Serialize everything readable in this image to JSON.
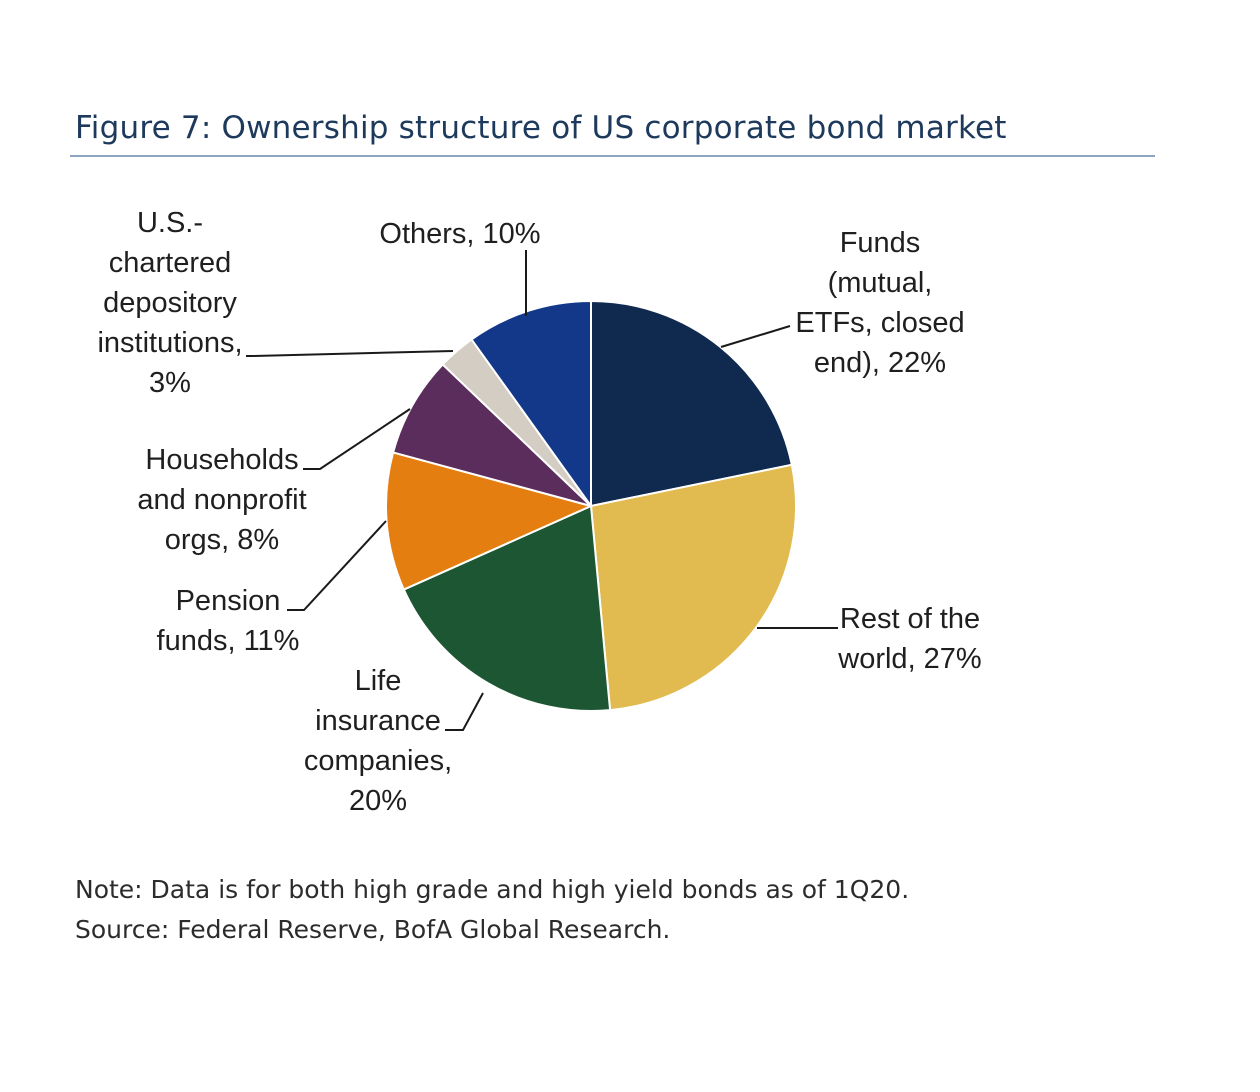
{
  "title": "Figure 7: Ownership structure of US corporate bond market",
  "chart_data": {
    "type": "pie",
    "title": "Figure 7: Ownership structure of US corporate bond market",
    "unit": "%",
    "slices": [
      {
        "label": "Funds (mutual, ETFs, closed end), 22%",
        "name": "Funds (mutual, ETFs, closed end)",
        "value": 22,
        "color": "#102a4f"
      },
      {
        "label": "Rest of the world, 27%",
        "name": "Rest of the world",
        "value": 27,
        "color": "#e1bb4f"
      },
      {
        "label": "Life insurance companies, 20%",
        "name": "Life insurance companies",
        "value": 20,
        "color": "#1d5632"
      },
      {
        "label": "Pension funds, 11%",
        "name": "Pension funds",
        "value": 11,
        "color": "#e57e11"
      },
      {
        "label": "Households and nonprofit orgs, 8%",
        "name": "Households and nonprofit orgs",
        "value": 8,
        "color": "#5b2d5c"
      },
      {
        "label": "U.S.-chartered depository institutions, 3%",
        "name": "U.S.-chartered depository institutions",
        "value": 3,
        "color": "#d4cdc3"
      },
      {
        "label": "Others, 10%",
        "name": "Others",
        "value": 10,
        "color": "#13388a"
      }
    ],
    "start": "12 o'clock",
    "direction": "clockwise",
    "legend": "none (slices labelled directly)"
  },
  "note": "Note: Data is for both high grade and high yield bonds as of 1Q20.",
  "source": "Source: Federal Reserve, BofA Global Research."
}
